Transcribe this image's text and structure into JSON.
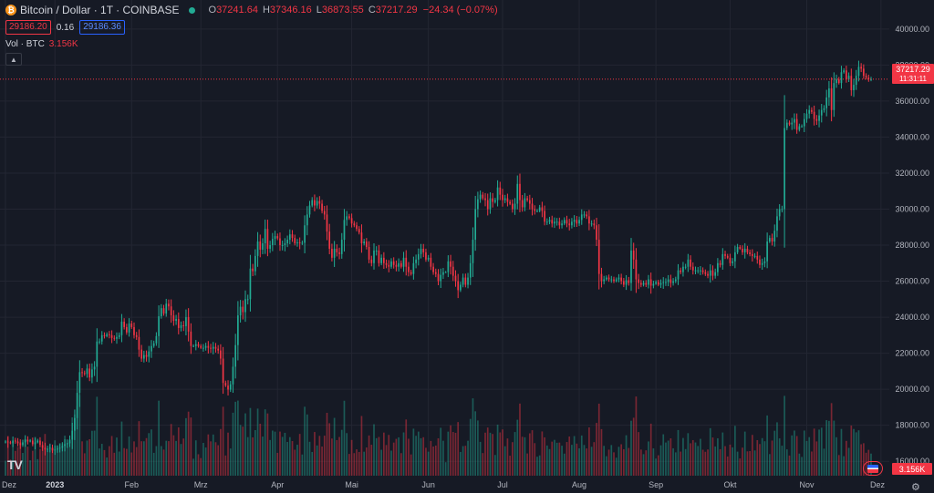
{
  "header": {
    "symbol": "Bitcoin / Dollar · 1T · COINBASE",
    "coin_glyph": "₿",
    "open_label": "O",
    "open": "37241.64",
    "high_label": "H",
    "high": "37346.16",
    "low_label": "L",
    "low": "36873.55",
    "close_label": "C",
    "close": "37217.29",
    "change": "−24.34 (−0.07%)"
  },
  "quotes": {
    "bid": "29186.20",
    "spread": "0.16",
    "ask": "29186.36"
  },
  "volume": {
    "label": "Vol · BTC",
    "value": "3.156K"
  },
  "price_tag": {
    "price": "37217.29",
    "countdown": "11:31:11"
  },
  "volume_tag": "3.156K",
  "colors": {
    "up": "#22ab94",
    "down": "#f23645",
    "background": "#161a25",
    "grid": "#232632"
  },
  "chart_data": {
    "type": "candlestick",
    "y_ticks": [
      "40000.00",
      "38000.00",
      "36000.00",
      "34000.00",
      "32000.00",
      "30000.00",
      "28000.00",
      "26000.00",
      "24000.00",
      "22000.00",
      "20000.00",
      "18000.00",
      "16000.00"
    ],
    "x_labels": [
      "Dez",
      "2023",
      "Feb",
      "Mrz",
      "Apr",
      "Mai",
      "Jun",
      "Jul",
      "Aug",
      "Sep",
      "Okt",
      "Nov",
      "Dez"
    ],
    "x_label_index": [
      0,
      20,
      51,
      79,
      110,
      140,
      171,
      201,
      232,
      263,
      293,
      324,
      354
    ],
    "ylim": [
      15200,
      40800
    ],
    "last_price": 37217.29,
    "grid": true,
    "close": [
      17100,
      17050,
      17000,
      17150,
      17100,
      17000,
      16900,
      17050,
      17200,
      17100,
      17150,
      16950,
      17050,
      17150,
      16900,
      16750,
      16650,
      16700,
      16750,
      16600,
      16650,
      16700,
      16750,
      16850,
      16950,
      17000,
      17200,
      17700,
      18400,
      19800,
      20950,
      20900,
      20850,
      21150,
      20650,
      21100,
      21250,
      22650,
      22650,
      23000,
      22950,
      23050,
      23000,
      22850,
      22800,
      22900,
      23000,
      23750,
      23450,
      23150,
      23650,
      23450,
      23000,
      22900,
      22200,
      21700,
      21900,
      21800,
      22100,
      22400,
      22550,
      22950,
      24050,
      24500,
      24200,
      24750,
      24600,
      24100,
      23800,
      23900,
      23400,
      23550,
      23500,
      24000,
      23200,
      22400,
      22400,
      22500,
      22400,
      22300,
      22300,
      22400,
      22300,
      22250,
      22350,
      22250,
      22150,
      21700,
      20350,
      20200,
      19980,
      20270,
      21250,
      22450,
      24100,
      24580,
      24280,
      25000,
      25000,
      26700,
      26550,
      27400,
      28200,
      27750,
      28100,
      28900,
      27800,
      28000,
      28350,
      28500,
      28380,
      28000,
      28000,
      28100,
      28300,
      28600,
      28400,
      28100,
      28150,
      28100,
      28130,
      29100,
      29700,
      30200,
      30500,
      30200,
      30450,
      30300,
      29900,
      29700,
      28750,
      27800,
      27300,
      27800,
      27600,
      27500,
      28300,
      29400,
      29600,
      29500,
      29200,
      29100,
      28900,
      28700,
      28100,
      28200,
      27900,
      27200,
      27000,
      27700,
      27700,
      27000,
      27300,
      27000,
      26900,
      26800,
      27100,
      26900,
      26800,
      27000,
      26800,
      27300,
      26800,
      26500,
      26400,
      27000,
      27200,
      27500,
      27800,
      27600,
      27200,
      27300,
      26800,
      26500,
      26400,
      26000,
      26350,
      26500,
      26500,
      27100,
      26800,
      26300,
      26000,
      25500,
      25800,
      26200,
      25800,
      26200,
      27000,
      28300,
      30000,
      30550,
      30800,
      30600,
      30500,
      30000,
      30600,
      30400,
      30500,
      31200,
      30800,
      30500,
      30600,
      30400,
      30300,
      30000,
      30300,
      31400,
      30500,
      30100,
      30600,
      30500,
      30300,
      30000,
      29900,
      29900,
      30100,
      29900,
      29300,
      29300,
      29400,
      29200,
      29300,
      29300,
      29100,
      29200,
      29400,
      29200,
      29100,
      29300,
      29400,
      29200,
      29400,
      29700,
      29700,
      29600,
      29200,
      29200,
      29100,
      28300,
      26400,
      26000,
      26100,
      26200,
      26100,
      26100,
      26000,
      26100,
      26200,
      26000,
      25800,
      26050,
      25900,
      27700,
      27200,
      26100,
      25900,
      25800,
      25900,
      25800,
      26100,
      25750,
      25850,
      25950,
      25800,
      25900,
      25950,
      25950,
      26100,
      25900,
      26000,
      26100,
      26600,
      26500,
      26800,
      26800,
      27200,
      26800,
      26600,
      26600,
      26600,
      26600,
      26500,
      26400,
      26300,
      26600,
      26300,
      26500,
      27000,
      26900,
      27500,
      27400,
      27300,
      27000,
      27100,
      27600,
      27900,
      27800,
      27600,
      27800,
      27600,
      27500,
      27400,
      27400,
      27200,
      26900,
      27000,
      27100,
      28200,
      28400,
      28200,
      28800,
      29600,
      30000,
      30000,
      34500,
      34800,
      34700,
      34800,
      35000,
      34400,
      34600,
      34600,
      35000,
      35300,
      35500,
      35400,
      35000,
      34900,
      35200,
      35500,
      35600,
      36200,
      36700,
      35500,
      37000,
      37200,
      37000,
      37600,
      37700,
      37200,
      37400,
      36600,
      36900,
      37400,
      37900,
      37800,
      37400,
      37300,
      37200,
      37217
    ]
  }
}
